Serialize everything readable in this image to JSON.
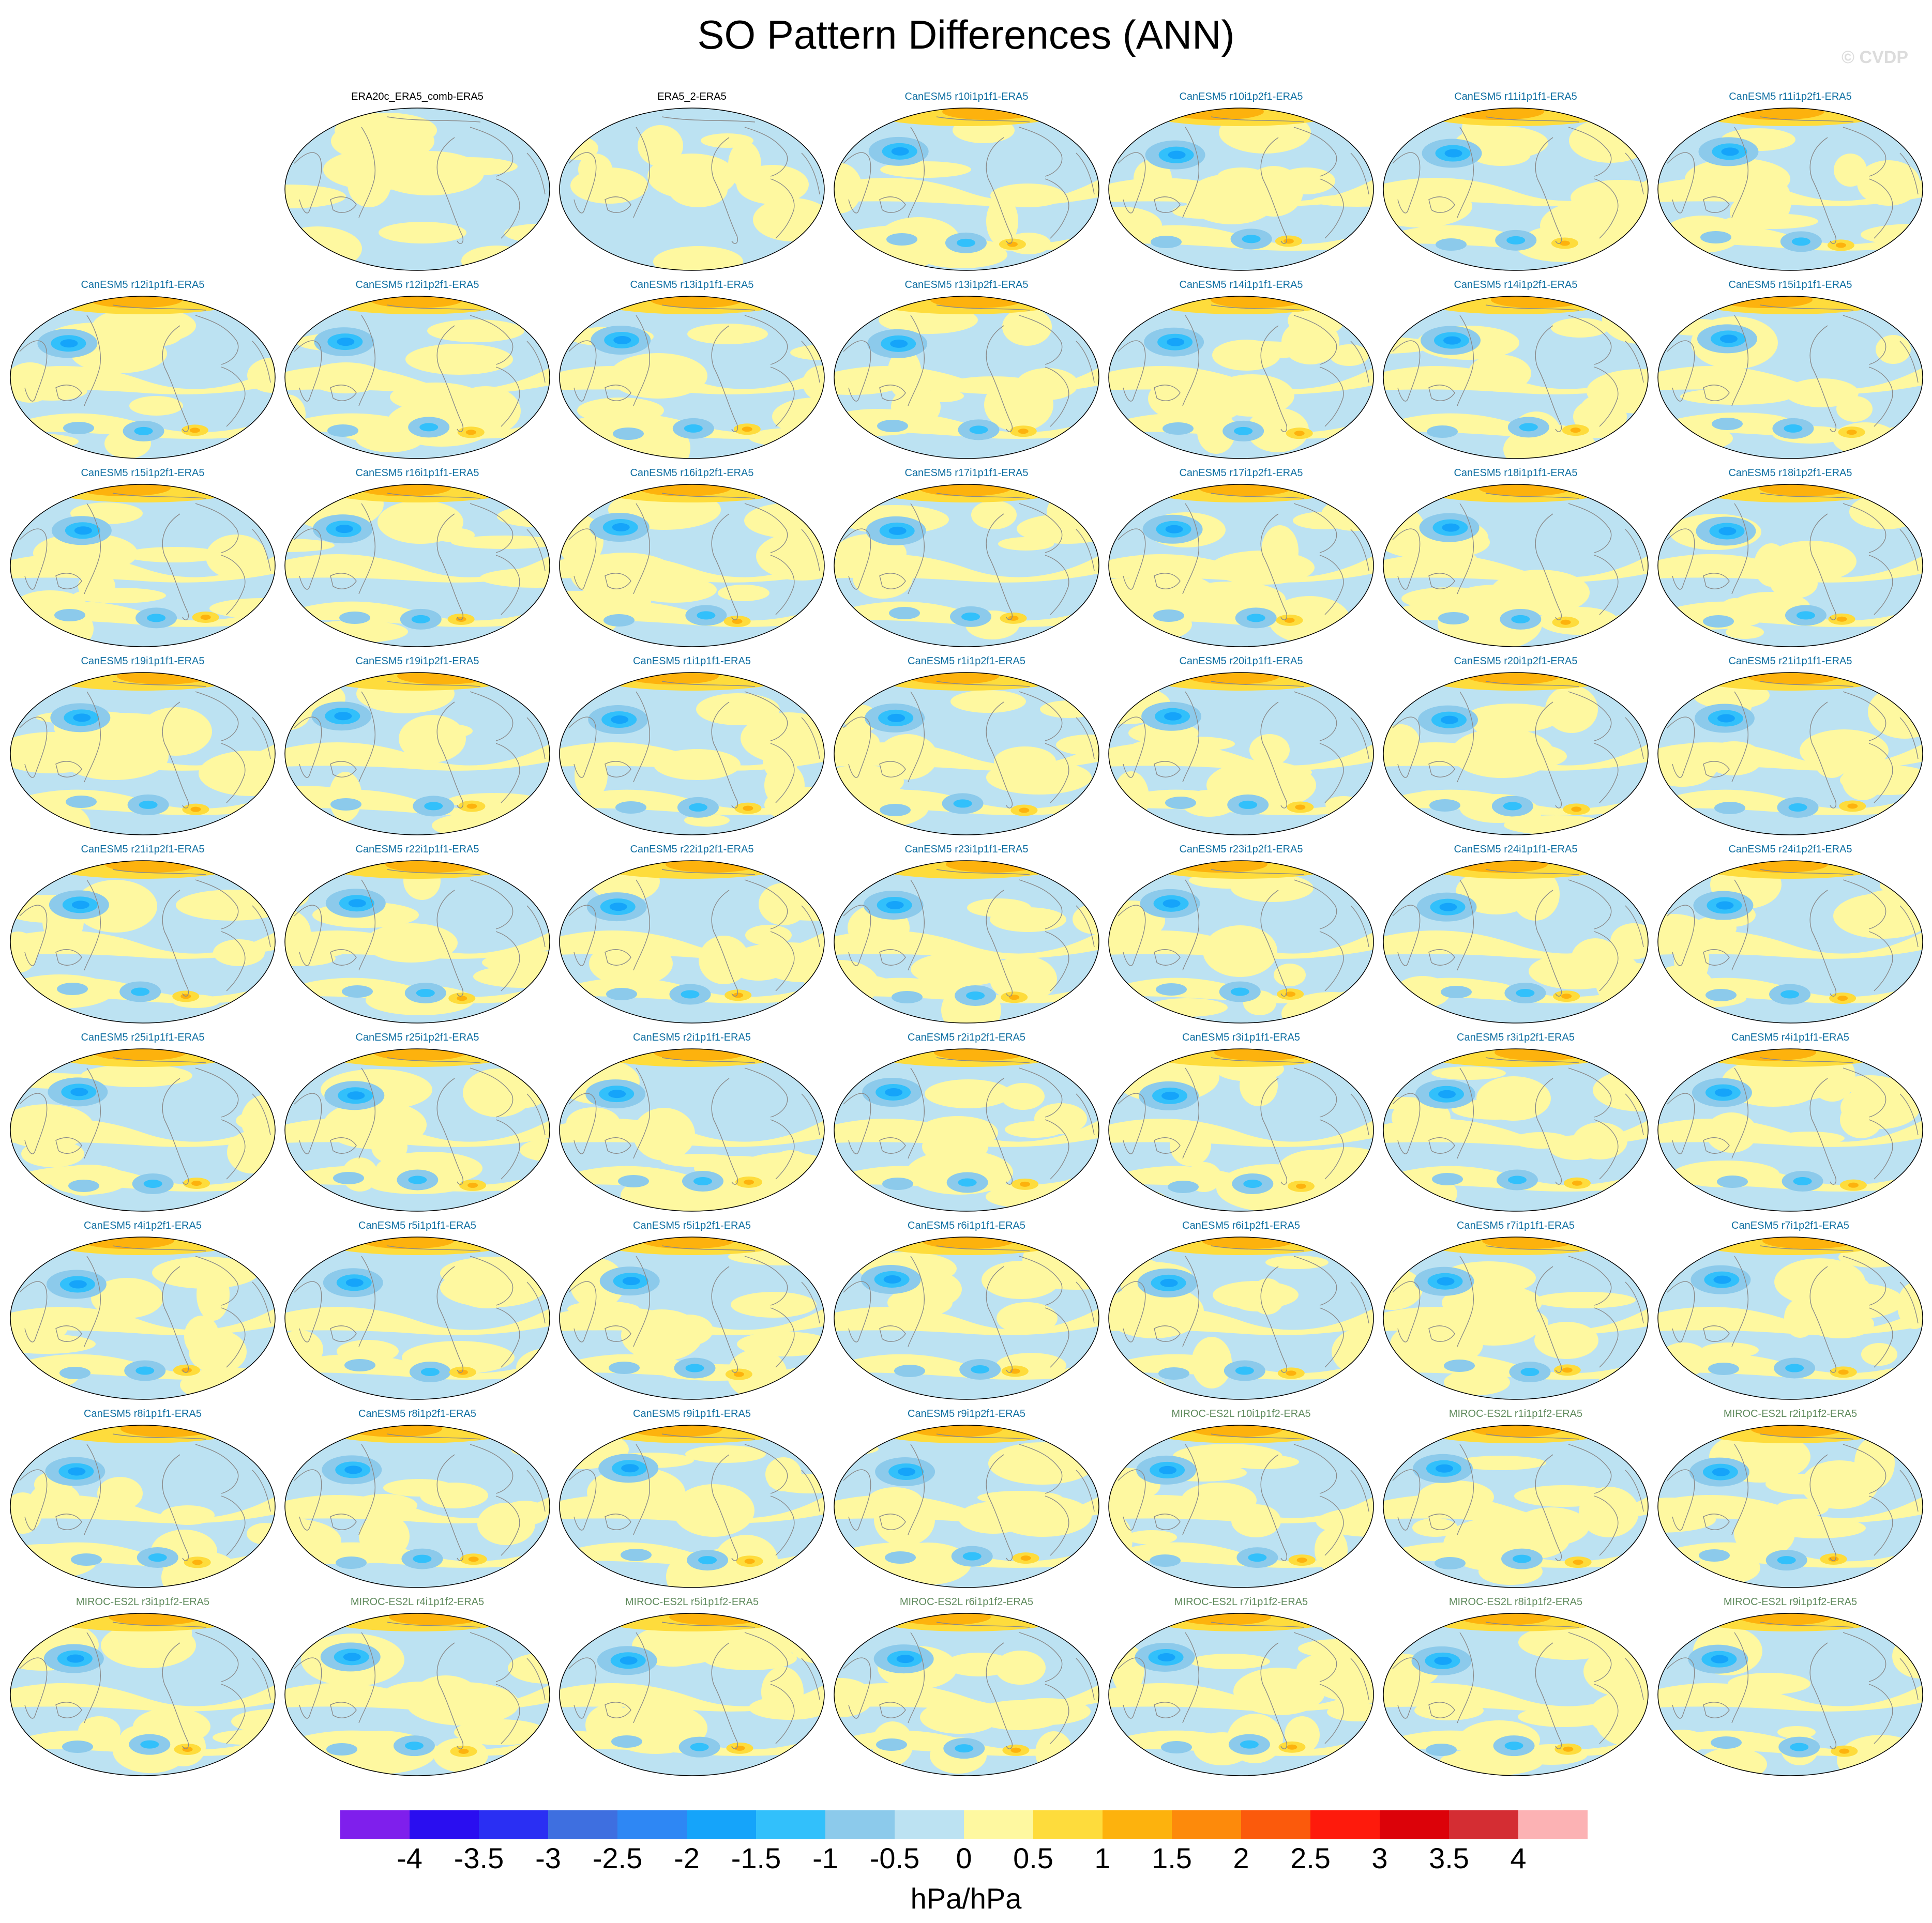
{
  "title": "SO Pattern Differences (ANN)",
  "credit": "© CVDP",
  "units": "hPa/hPa",
  "colorbar": {
    "colors": [
      "#7f1fec",
      "#2a0ef0",
      "#2a2ff3",
      "#3e6fe0",
      "#2e87f4",
      "#15a4fa",
      "#32c0fb",
      "#8ccaeb",
      "#bce2f2",
      "#fef8a0",
      "#fedc3c",
      "#fdb20d",
      "#fd8a0b",
      "#fb5a0c",
      "#fe1a0c",
      "#dc0209",
      "#d42d33",
      "#fcb2b4"
    ],
    "ticks": [
      "-4",
      "-3.5",
      "-3",
      "-2.5",
      "-2",
      "-1.5",
      "-1",
      "-0.5",
      "0",
      "0.5",
      "1",
      "1.5",
      "2",
      "2.5",
      "3",
      "3.5",
      "4"
    ]
  },
  "label_colors": {
    "obs": "#000000",
    "CanESM5": "#0f6fa2",
    "MIROC-ES2L": "#5f8a5c"
  },
  "panels": [
    {
      "label": "ERA20c_ERA5_comb-ERA5",
      "group": "obs",
      "seed": 1
    },
    {
      "label": "ERA5_2-ERA5",
      "group": "obs",
      "seed": 2
    },
    {
      "label": "CanESM5 r10i1p1f1-ERA5",
      "group": "CanESM5",
      "seed": 3
    },
    {
      "label": "CanESM5 r10i1p2f1-ERA5",
      "group": "CanESM5",
      "seed": 4
    },
    {
      "label": "CanESM5 r11i1p1f1-ERA5",
      "group": "CanESM5",
      "seed": 5
    },
    {
      "label": "CanESM5 r11i1p2f1-ERA5",
      "group": "CanESM5",
      "seed": 6
    },
    {
      "label": "CanESM5 r12i1p1f1-ERA5",
      "group": "CanESM5",
      "seed": 7
    },
    {
      "label": "CanESM5 r12i1p2f1-ERA5",
      "group": "CanESM5",
      "seed": 8
    },
    {
      "label": "CanESM5 r13i1p1f1-ERA5",
      "group": "CanESM5",
      "seed": 9
    },
    {
      "label": "CanESM5 r13i1p2f1-ERA5",
      "group": "CanESM5",
      "seed": 10
    },
    {
      "label": "CanESM5 r14i1p1f1-ERA5",
      "group": "CanESM5",
      "seed": 11
    },
    {
      "label": "CanESM5 r14i1p2f1-ERA5",
      "group": "CanESM5",
      "seed": 12
    },
    {
      "label": "CanESM5 r15i1p1f1-ERA5",
      "group": "CanESM5",
      "seed": 13
    },
    {
      "label": "CanESM5 r15i1p2f1-ERA5",
      "group": "CanESM5",
      "seed": 14
    },
    {
      "label": "CanESM5 r16i1p1f1-ERA5",
      "group": "CanESM5",
      "seed": 15
    },
    {
      "label": "CanESM5 r16i1p2f1-ERA5",
      "group": "CanESM5",
      "seed": 16
    },
    {
      "label": "CanESM5 r17i1p1f1-ERA5",
      "group": "CanESM5",
      "seed": 17
    },
    {
      "label": "CanESM5 r17i1p2f1-ERA5",
      "group": "CanESM5",
      "seed": 18
    },
    {
      "label": "CanESM5 r18i1p1f1-ERA5",
      "group": "CanESM5",
      "seed": 19
    },
    {
      "label": "CanESM5 r18i1p2f1-ERA5",
      "group": "CanESM5",
      "seed": 20
    },
    {
      "label": "CanESM5 r19i1p1f1-ERA5",
      "group": "CanESM5",
      "seed": 21
    },
    {
      "label": "CanESM5 r19i1p2f1-ERA5",
      "group": "CanESM5",
      "seed": 22
    },
    {
      "label": "CanESM5 r1i1p1f1-ERA5",
      "group": "CanESM5",
      "seed": 23
    },
    {
      "label": "CanESM5 r1i1p2f1-ERA5",
      "group": "CanESM5",
      "seed": 24
    },
    {
      "label": "CanESM5 r20i1p1f1-ERA5",
      "group": "CanESM5",
      "seed": 25
    },
    {
      "label": "CanESM5 r20i1p2f1-ERA5",
      "group": "CanESM5",
      "seed": 26
    },
    {
      "label": "CanESM5 r21i1p1f1-ERA5",
      "group": "CanESM5",
      "seed": 27
    },
    {
      "label": "CanESM5 r21i1p2f1-ERA5",
      "group": "CanESM5",
      "seed": 28
    },
    {
      "label": "CanESM5 r22i1p1f1-ERA5",
      "group": "CanESM5",
      "seed": 29
    },
    {
      "label": "CanESM5 r22i1p2f1-ERA5",
      "group": "CanESM5",
      "seed": 30
    },
    {
      "label": "CanESM5 r23i1p1f1-ERA5",
      "group": "CanESM5",
      "seed": 31
    },
    {
      "label": "CanESM5 r23i1p2f1-ERA5",
      "group": "CanESM5",
      "seed": 32
    },
    {
      "label": "CanESM5 r24i1p1f1-ERA5",
      "group": "CanESM5",
      "seed": 33
    },
    {
      "label": "CanESM5 r24i1p2f1-ERA5",
      "group": "CanESM5",
      "seed": 34
    },
    {
      "label": "CanESM5 r25i1p1f1-ERA5",
      "group": "CanESM5",
      "seed": 35
    },
    {
      "label": "CanESM5 r25i1p2f1-ERA5",
      "group": "CanESM5",
      "seed": 36
    },
    {
      "label": "CanESM5 r2i1p1f1-ERA5",
      "group": "CanESM5",
      "seed": 37
    },
    {
      "label": "CanESM5 r2i1p2f1-ERA5",
      "group": "CanESM5",
      "seed": 38
    },
    {
      "label": "CanESM5 r3i1p1f1-ERA5",
      "group": "CanESM5",
      "seed": 39
    },
    {
      "label": "CanESM5 r3i1p2f1-ERA5",
      "group": "CanESM5",
      "seed": 40
    },
    {
      "label": "CanESM5 r4i1p1f1-ERA5",
      "group": "CanESM5",
      "seed": 41
    },
    {
      "label": "CanESM5 r4i1p2f1-ERA5",
      "group": "CanESM5",
      "seed": 42
    },
    {
      "label": "CanESM5 r5i1p1f1-ERA5",
      "group": "CanESM5",
      "seed": 43
    },
    {
      "label": "CanESM5 r5i1p2f1-ERA5",
      "group": "CanESM5",
      "seed": 44
    },
    {
      "label": "CanESM5 r6i1p1f1-ERA5",
      "group": "CanESM5",
      "seed": 45
    },
    {
      "label": "CanESM5 r6i1p2f1-ERA5",
      "group": "CanESM5",
      "seed": 46
    },
    {
      "label": "CanESM5 r7i1p1f1-ERA5",
      "group": "CanESM5",
      "seed": 47
    },
    {
      "label": "CanESM5 r7i1p2f1-ERA5",
      "group": "CanESM5",
      "seed": 48
    },
    {
      "label": "CanESM5 r8i1p1f1-ERA5",
      "group": "CanESM5",
      "seed": 49
    },
    {
      "label": "CanESM5 r8i1p2f1-ERA5",
      "group": "CanESM5",
      "seed": 50
    },
    {
      "label": "CanESM5 r9i1p1f1-ERA5",
      "group": "CanESM5",
      "seed": 51
    },
    {
      "label": "CanESM5 r9i1p2f1-ERA5",
      "group": "CanESM5",
      "seed": 52
    },
    {
      "label": "MIROC-ES2L r10i1p1f2-ERA5",
      "group": "MIROC-ES2L",
      "seed": 53
    },
    {
      "label": "MIROC-ES2L r1i1p1f2-ERA5",
      "group": "MIROC-ES2L",
      "seed": 54
    },
    {
      "label": "MIROC-ES2L r2i1p1f2-ERA5",
      "group": "MIROC-ES2L",
      "seed": 55
    },
    {
      "label": "MIROC-ES2L r3i1p1f2-ERA5",
      "group": "MIROC-ES2L",
      "seed": 56
    },
    {
      "label": "MIROC-ES2L r4i1p1f2-ERA5",
      "group": "MIROC-ES2L",
      "seed": 57
    },
    {
      "label": "MIROC-ES2L r5i1p1f2-ERA5",
      "group": "MIROC-ES2L",
      "seed": 58
    },
    {
      "label": "MIROC-ES2L r6i1p1f2-ERA5",
      "group": "MIROC-ES2L",
      "seed": 59
    },
    {
      "label": "MIROC-ES2L r7i1p1f2-ERA5",
      "group": "MIROC-ES2L",
      "seed": 60
    },
    {
      "label": "MIROC-ES2L r8i1p1f2-ERA5",
      "group": "MIROC-ES2L",
      "seed": 61
    },
    {
      "label": "MIROC-ES2L r9i1p1f2-ERA5",
      "group": "MIROC-ES2L",
      "seed": 62
    }
  ]
}
